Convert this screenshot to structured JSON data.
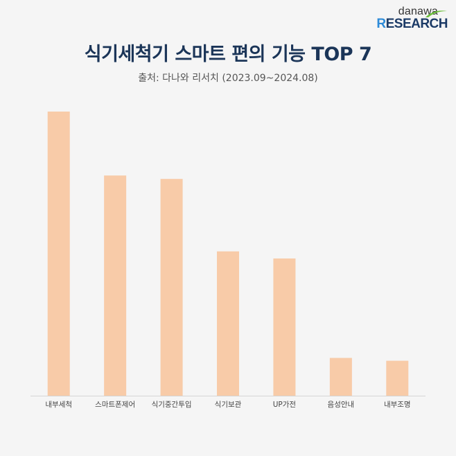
{
  "brand": {
    "logo_top": "danawa",
    "logo_bottom_accent": "R",
    "logo_bottom_rest": "ESEARCH"
  },
  "header": {
    "title": "식기세척기 스마트 편의 기능 TOP 7",
    "subtitle": "출처: 다나와 리서치 (2023.09~2024.08)"
  },
  "colors": {
    "bar": "#f8cba8",
    "axis": "#d5d5d5",
    "title": "#1b3558"
  },
  "chart_data": {
    "type": "bar",
    "title": "식기세척기 스마트 편의 기능 TOP 7",
    "subtitle": "출처: 다나와 리서치 (2023.09~2024.08)",
    "categories": [
      "내부세척",
      "스마트폰제어",
      "식기중간투입",
      "식기보관",
      "UP가전",
      "음성안내",
      "내부조명"
    ],
    "values": [
      100,
      77.5,
      76.3,
      50.8,
      48.3,
      13.3,
      12.3
    ],
    "ylim": [
      0,
      100
    ],
    "grid": false,
    "legend": "none"
  }
}
